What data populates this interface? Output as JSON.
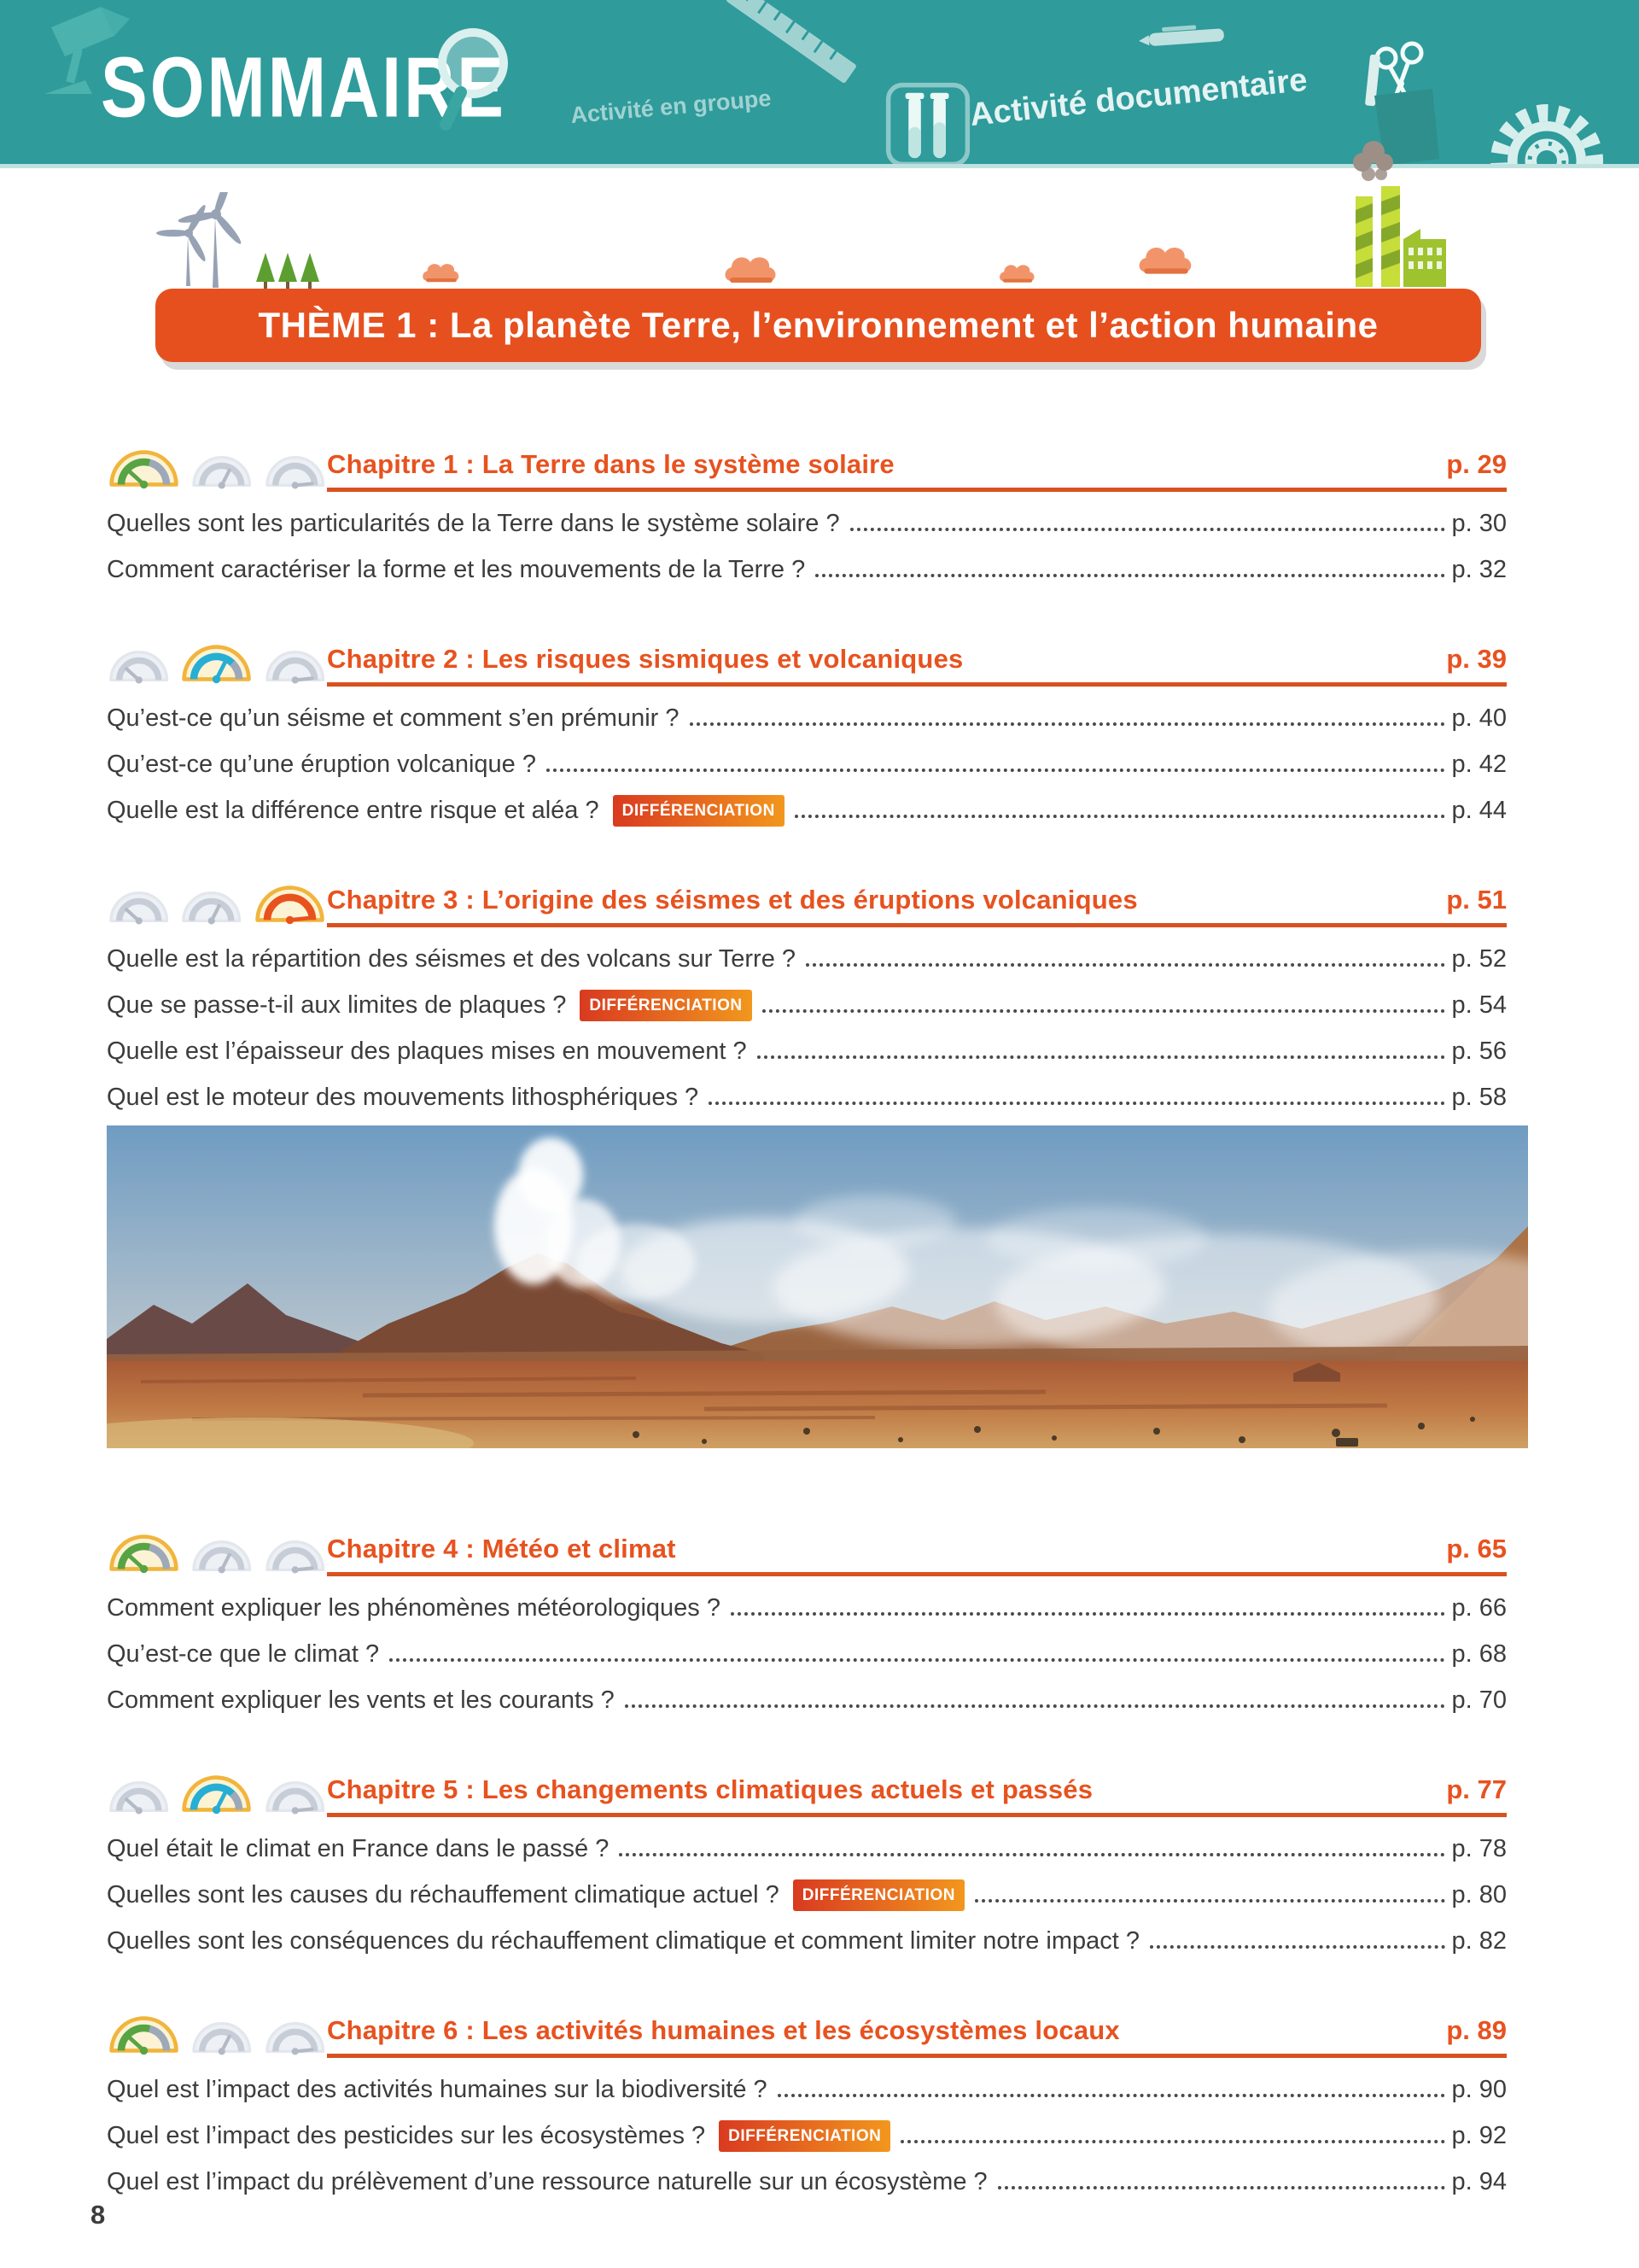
{
  "header": {
    "title": "SOMMAIRE",
    "labels": {
      "group_activity": "Activité en groupe",
      "documentary_activity": "Activité documentaire"
    },
    "icons": [
      "desk-lamp-icon",
      "magnifier-icon",
      "ruler-icon",
      "pen-icon",
      "test-tubes-icon",
      "scissors-cup-icon",
      "gear-icon"
    ]
  },
  "decor_icons": [
    "wind-turbines-icon",
    "trees-icon",
    "cloud-icon",
    "factory-icon"
  ],
  "theme": {
    "banner": "THÈME 1 : La planète Terre, l’environnement et l’action humaine"
  },
  "badge_label": "DIFFÉRENCIATION",
  "photo": {
    "name": "volcanic-desert-landscape-photo"
  },
  "chapters": [
    {
      "title": "Chapitre 1 : La Terre dans le système solaire",
      "page": "p. 29",
      "level": 1,
      "questions": [
        {
          "text": "Quelles sont les particularités de la Terre dans le système solaire ?",
          "page": "p. 30",
          "badge": false
        },
        {
          "text": "Comment caractériser la forme et les mouvements de la Terre ?",
          "page": "p. 32",
          "badge": false
        }
      ]
    },
    {
      "title": "Chapitre 2 : Les risques sismiques et volcaniques",
      "page": "p. 39",
      "level": 2,
      "questions": [
        {
          "text": "Qu’est-ce qu’un séisme et comment s’en prémunir ?",
          "page": "p. 40",
          "badge": false
        },
        {
          "text": "Qu’est-ce qu’une éruption volcanique ?",
          "page": "p. 42",
          "badge": false
        },
        {
          "text": "Quelle est la différence entre risque et aléa ?",
          "page": "p. 44",
          "badge": true
        }
      ]
    },
    {
      "title": "Chapitre 3 : L’origine des séismes et des éruptions volcaniques",
      "page": "p. 51",
      "level": 3,
      "questions": [
        {
          "text": "Quelle est la répartition des séismes et des volcans sur Terre ?",
          "page": "p. 52",
          "badge": false
        },
        {
          "text": "Que se passe-t-il aux limites de plaques ?",
          "page": "p. 54",
          "badge": true
        },
        {
          "text": "Quelle est l’épaisseur des plaques mises en mouvement ?",
          "page": "p. 56",
          "badge": false
        },
        {
          "text": "Quel est le moteur des mouvements lithosphériques ?",
          "page": "p. 58",
          "badge": false
        }
      ]
    },
    {
      "title": "Chapitre 4 :  Météo et climat",
      "page": "p. 65",
      "level": 1,
      "questions": [
        {
          "text": "Comment expliquer les phénomènes météorologiques ?",
          "page": "p. 66",
          "badge": false
        },
        {
          "text": "Qu’est-ce que le climat ?",
          "page": "p. 68",
          "badge": false
        },
        {
          "text": "Comment expliquer les vents et les courants ?",
          "page": "p. 70",
          "badge": false
        }
      ]
    },
    {
      "title": "Chapitre 5 : Les changements climatiques actuels et passés",
      "page": "p. 77",
      "level": 2,
      "questions": [
        {
          "text": "Quel était le climat en France dans le passé ?",
          "page": "p. 78",
          "badge": false
        },
        {
          "text": "Quelles sont les causes du réchauffement climatique actuel ?",
          "page": "p. 80",
          "badge": true
        },
        {
          "text": "Quelles sont les conséquences du réchauffement climatique et comment limiter notre impact ?",
          "page": "p. 82",
          "badge": false
        }
      ]
    },
    {
      "title": "Chapitre 6 : Les activités humaines et les écosystèmes locaux",
      "page": "p. 89",
      "level": 1,
      "questions": [
        {
          "text": "Quel est l’impact des activités humaines sur la biodiversité ?",
          "page": "p. 90",
          "badge": false
        },
        {
          "text": "Quel est l’impact des pesticides sur les écosystèmes ?",
          "page": "p. 92",
          "badge": true
        },
        {
          "text": "Quel est l’impact du prélèvement d’une ressource naturelle sur un écosystème ?",
          "page": "p. 94",
          "badge": false
        }
      ]
    }
  ],
  "footer": {
    "page_number": "8"
  },
  "colors": {
    "header_teal": "#2F9B9B",
    "accent_orange": "#E6501F",
    "badge_gradient_left": "#D93A20",
    "badge_gradient_right": "#F2971E",
    "gauge_active_ring": "#F1B53D",
    "gauge_green": "#58A444",
    "gauge_blue": "#27AED4",
    "gauge_orange": "#E8521D"
  }
}
